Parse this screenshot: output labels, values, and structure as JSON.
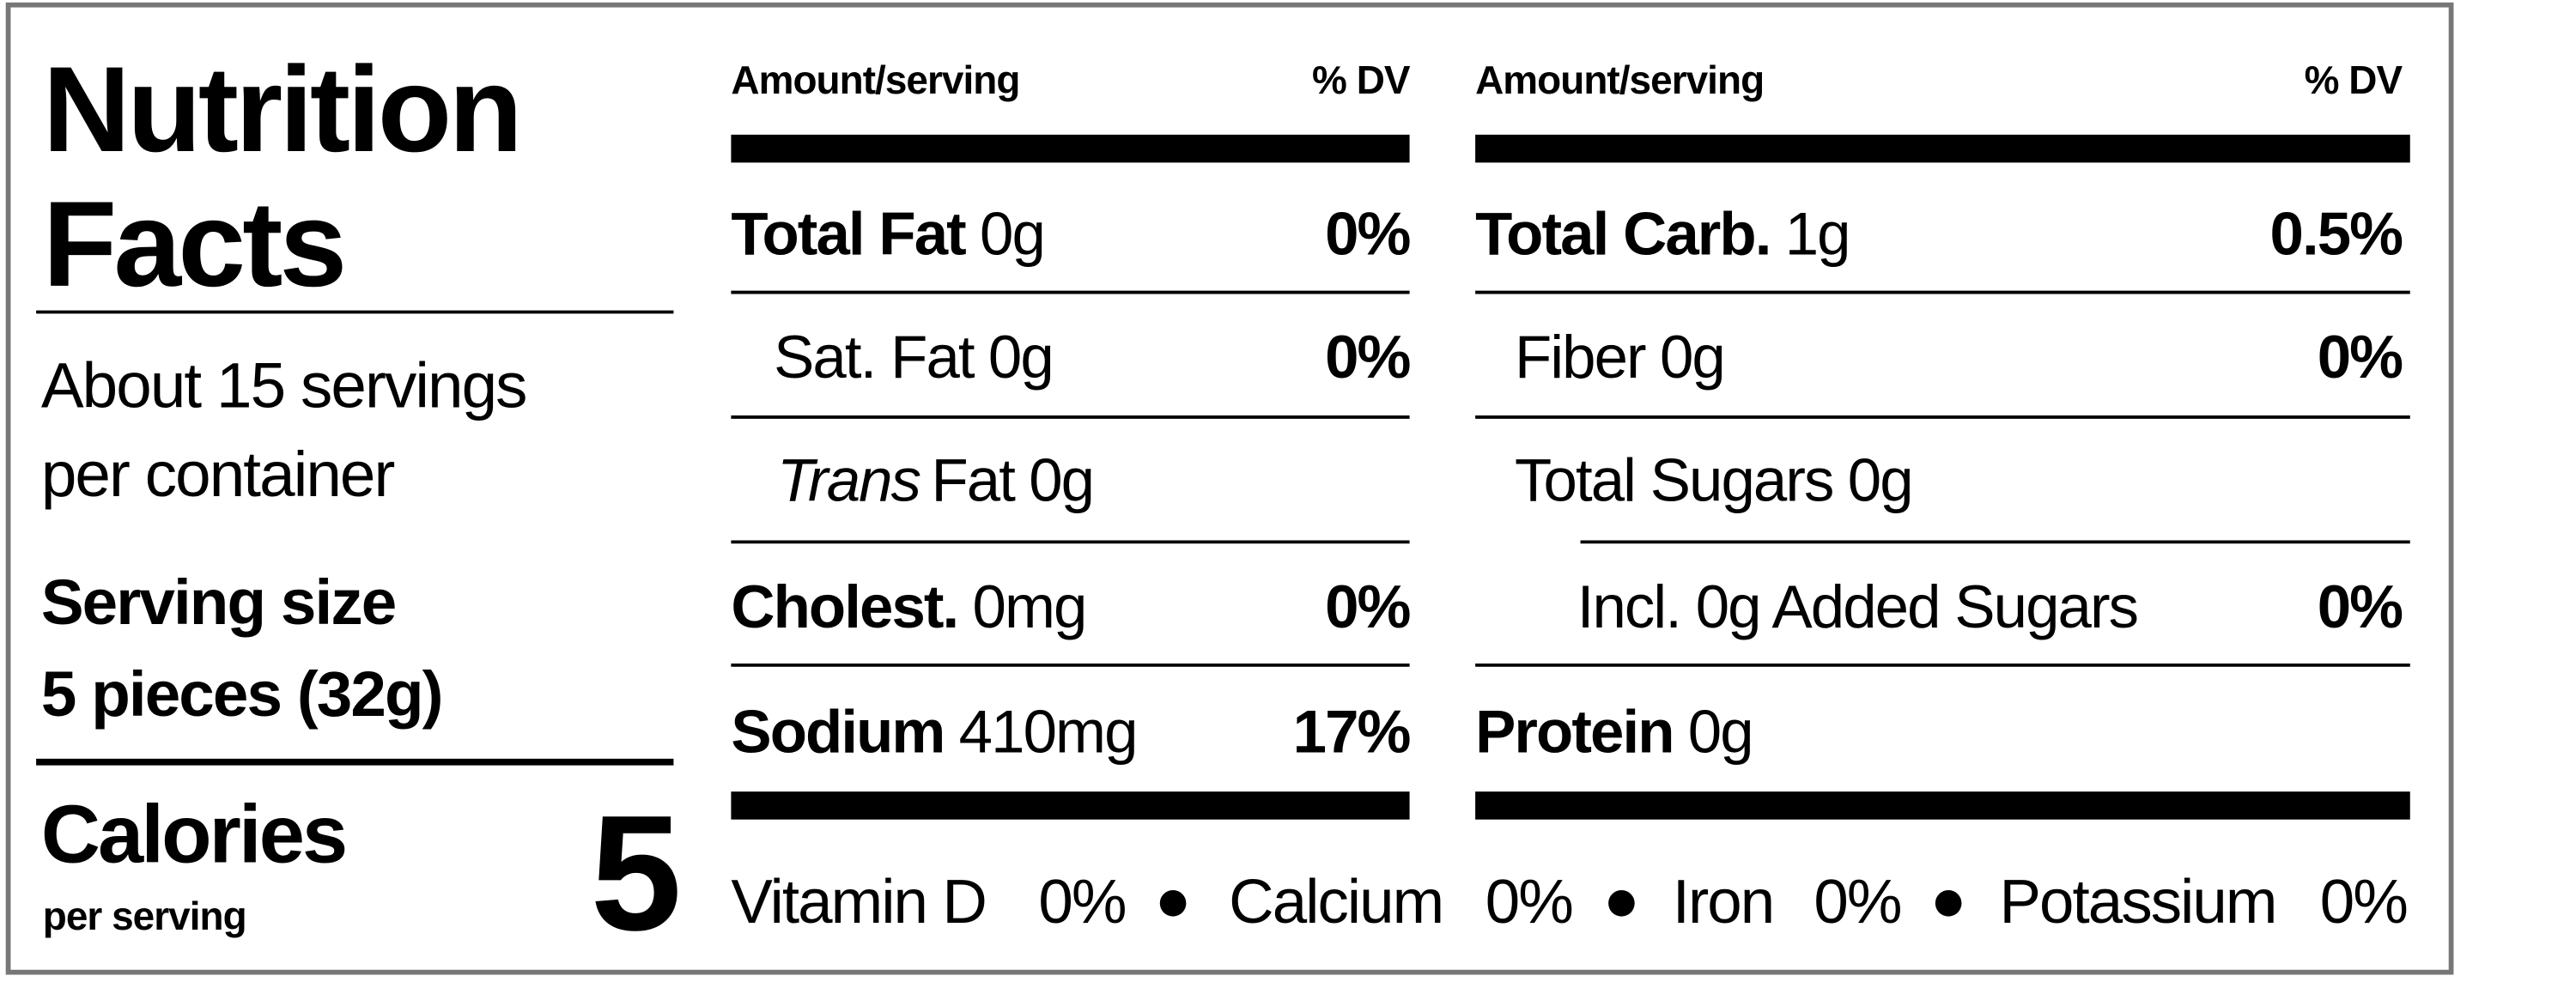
{
  "title": [
    "Nutrition",
    "Facts"
  ],
  "servings": [
    "About 15 servings",
    "per container"
  ],
  "serving_size": {
    "label": "Serving size",
    "value": "5 pieces (32g)"
  },
  "calories": {
    "label": "Calories",
    "sublabel": "per serving",
    "value": 5
  },
  "columns": [
    {
      "header": {
        "amount": "Amount/serving",
        "dv": "% DV"
      },
      "rows": [
        {
          "name": "Total Fat",
          "amount": "0g",
          "dv": "0%"
        },
        {
          "name": "Sat. Fat",
          "amount": "0g",
          "dv": "0%"
        },
        {
          "name_italic": "Trans",
          "name": "Fat",
          "amount": "0g"
        },
        {
          "name": "Cholest.",
          "amount": "0mg",
          "dv": "0%"
        },
        {
          "name": "Sodium",
          "amount": "410mg",
          "dv": "17%"
        }
      ]
    },
    {
      "header": {
        "amount": "Amount/serving",
        "dv": "% DV"
      },
      "rows": [
        {
          "name": "Total Carb.",
          "amount": "1g",
          "dv": "0.5%"
        },
        {
          "name": "Fiber",
          "amount": "0g",
          "dv": "0%"
        },
        {
          "name": "Total Sugars",
          "amount": "0g"
        },
        {
          "name": "Incl. 0g Added Sugars",
          "dv": "0%"
        },
        {
          "name": "Protein",
          "amount": "0g"
        }
      ]
    }
  ],
  "vitamins": [
    {
      "name": "Vitamin D",
      "dv": "0%"
    },
    {
      "name": "Calcium",
      "dv": "0%"
    },
    {
      "name": "Iron",
      "dv": "0%"
    },
    {
      "name": "Potassium",
      "dv": "0%"
    }
  ]
}
